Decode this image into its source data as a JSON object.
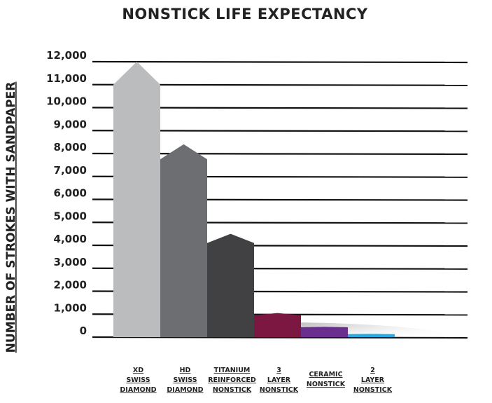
{
  "chart_data": {
    "type": "bar",
    "title": "NONSTICK LIFE EXPECTANCY",
    "xlabel": "",
    "ylabel": "NUMBER OF STROKES WITH SANDPAPER",
    "ylim": [
      0,
      12000
    ],
    "grid": true,
    "yticks": [
      "0",
      "1,000",
      "2,000",
      "3,000",
      "4,000",
      "5,000",
      "6,000",
      "7,000",
      "8,000",
      "9,000",
      "10,000",
      "11,000",
      "12,000"
    ],
    "categories": [
      [
        "XD",
        "SWISS",
        "DIAMOND"
      ],
      [
        "HD",
        "SWISS",
        "DIAMOND"
      ],
      [
        "TITANIUM",
        "REINFORCED",
        "NONSTICK"
      ],
      [
        "3",
        "LAYER",
        "NONSTICK"
      ],
      [
        "CERAMIC",
        "NONSTICK"
      ],
      [
        "2",
        "LAYER",
        "NONSTICK"
      ]
    ],
    "values": [
      11000,
      7750,
      4100,
      950,
      430,
      130
    ],
    "peaks": [
      12000,
      8400,
      4500,
      1050,
      450,
      140
    ],
    "colors": [
      "#bbbcbe",
      "#6d6e71",
      "#414143",
      "#7b1740",
      "#6a2f8e",
      "#27aae1"
    ]
  }
}
